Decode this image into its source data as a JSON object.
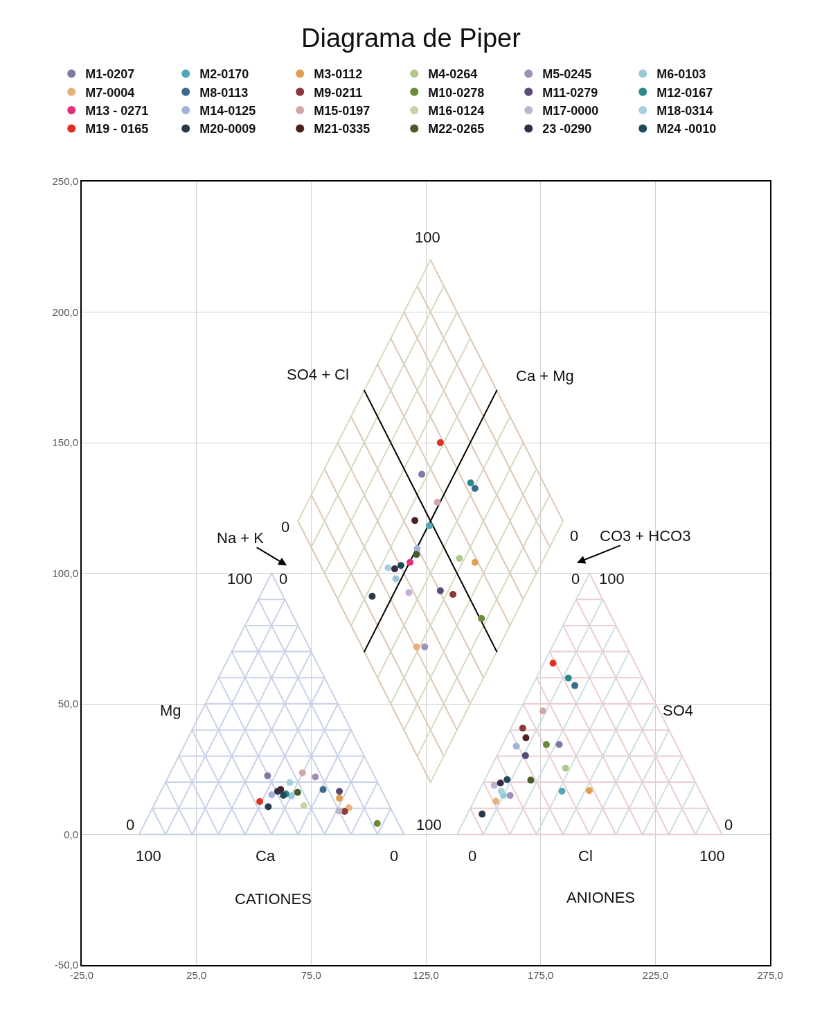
{
  "chart_data": {
    "type": "scatter",
    "title": "Diagrama de Piper",
    "legend": "top",
    "grid": true,
    "marker": "circle",
    "xlim": [
      -25,
      275
    ],
    "xticks": [
      {
        "value": -25,
        "label": "-25,0"
      },
      {
        "value": 25,
        "label": "25,0"
      },
      {
        "value": 75,
        "label": "75,0"
      },
      {
        "value": 125,
        "label": "125,0"
      },
      {
        "value": 175,
        "label": "175,0"
      },
      {
        "value": 225,
        "label": "225,0"
      },
      {
        "value": 275,
        "label": "275,0"
      }
    ],
    "ylim": [
      -50,
      250
    ],
    "yticks": [
      {
        "value": -50,
        "label": "-50,0"
      },
      {
        "value": 0,
        "label": "0,0"
      },
      {
        "value": 50,
        "label": "50,0"
      },
      {
        "value": 100,
        "label": "100,0"
      },
      {
        "value": 150,
        "label": "150,0"
      },
      {
        "value": 200,
        "label": "200,0"
      },
      {
        "value": 250,
        "label": "250,0"
      }
    ],
    "series": [
      {
        "type": "line",
        "marker": "none",
        "color": "#c9d2e6",
        "x": [
          0,
          115.47
        ],
        "values": [
          0,
          0
        ]
      },
      {
        "type": "line",
        "marker": "none",
        "color": "#c9d2e6",
        "x": [
          5.77,
          109.7
        ],
        "values": [
          10,
          10
        ]
      },
      {
        "type": "line",
        "marker": "none",
        "color": "#c9d2e6",
        "x": [
          11.55,
          103.92
        ],
        "values": [
          20,
          20
        ]
      },
      {
        "type": "line",
        "marker": "none",
        "color": "#c9d2e6",
        "x": [
          17.32,
          98.15
        ],
        "values": [
          30,
          30
        ]
      },
      {
        "type": "line",
        "marker": "none",
        "color": "#c9d2e6",
        "x": [
          23.09,
          92.38
        ],
        "values": [
          40,
          40
        ]
      },
      {
        "type": "line",
        "marker": "none",
        "color": "#c9d2e6",
        "x": [
          28.87,
          86.6
        ],
        "values": [
          50,
          50
        ]
      },
      {
        "type": "line",
        "marker": "none",
        "color": "#c9d2e6",
        "x": [
          34.64,
          80.83
        ],
        "values": [
          60,
          60
        ]
      },
      {
        "type": "line",
        "marker": "none",
        "color": "#c9d2e6",
        "x": [
          40.41,
          75.06
        ],
        "values": [
          70,
          70
        ]
      },
      {
        "type": "line",
        "marker": "none",
        "color": "#c9d2e6",
        "x": [
          46.19,
          69.28
        ],
        "values": [
          80,
          80
        ]
      },
      {
        "type": "line",
        "marker": "none",
        "color": "#c9d2e6",
        "x": [
          51.96,
          63.51
        ],
        "values": [
          90,
          90
        ]
      },
      {
        "type": "line",
        "marker": "none",
        "color": "#c9d2e6",
        "x": [
          0,
          57.74
        ],
        "values": [
          0,
          100
        ]
      },
      {
        "type": "line",
        "marker": "none",
        "color": "#c9d2e6",
        "x": [
          11.55,
          63.51
        ],
        "values": [
          0,
          90
        ]
      },
      {
        "type": "line",
        "marker": "none",
        "color": "#c9d2e6",
        "x": [
          23.09,
          69.28
        ],
        "values": [
          0,
          80
        ]
      },
      {
        "type": "line",
        "marker": "none",
        "color": "#c9d2e6",
        "x": [
          34.64,
          75.06
        ],
        "values": [
          0,
          70
        ]
      },
      {
        "type": "line",
        "marker": "none",
        "color": "#c9d2e6",
        "x": [
          46.19,
          80.83
        ],
        "values": [
          0,
          60
        ]
      },
      {
        "type": "line",
        "marker": "none",
        "color": "#c9d2e6",
        "x": [
          57.74,
          86.6
        ],
        "values": [
          0,
          50
        ]
      },
      {
        "type": "line",
        "marker": "none",
        "color": "#c9d2e6",
        "x": [
          69.28,
          92.38
        ],
        "values": [
          0,
          40
        ]
      },
      {
        "type": "line",
        "marker": "none",
        "color": "#c9d2e6",
        "x": [
          80.83,
          98.15
        ],
        "values": [
          0,
          30
        ]
      },
      {
        "type": "line",
        "marker": "none",
        "color": "#c9d2e6",
        "x": [
          92.38,
          103.92
        ],
        "values": [
          0,
          20
        ]
      },
      {
        "type": "line",
        "marker": "none",
        "color": "#c9d2e6",
        "x": [
          103.92,
          109.7
        ],
        "values": [
          0,
          10
        ]
      },
      {
        "type": "line",
        "marker": "none",
        "color": "#c9d2e6",
        "x": [
          11.55,
          5.77
        ],
        "values": [
          0,
          10
        ]
      },
      {
        "type": "line",
        "marker": "none",
        "color": "#c9d2e6",
        "x": [
          23.09,
          11.55
        ],
        "values": [
          0,
          20
        ]
      },
      {
        "type": "line",
        "marker": "none",
        "color": "#c9d2e6",
        "x": [
          34.64,
          17.32
        ],
        "values": [
          0,
          30
        ]
      },
      {
        "type": "line",
        "marker": "none",
        "color": "#c9d2e6",
        "x": [
          46.19,
          23.09
        ],
        "values": [
          0,
          40
        ]
      },
      {
        "type": "line",
        "marker": "none",
        "color": "#c9d2e6",
        "x": [
          57.74,
          28.87
        ],
        "values": [
          0,
          50
        ]
      },
      {
        "type": "line",
        "marker": "none",
        "color": "#c9d2e6",
        "x": [
          69.28,
          34.64
        ],
        "values": [
          0,
          60
        ]
      },
      {
        "type": "line",
        "marker": "none",
        "color": "#c9d2e6",
        "x": [
          80.83,
          40.41
        ],
        "values": [
          0,
          70
        ]
      },
      {
        "type": "line",
        "marker": "none",
        "color": "#c9d2e6",
        "x": [
          92.38,
          46.19
        ],
        "values": [
          0,
          80
        ]
      },
      {
        "type": "line",
        "marker": "none",
        "color": "#c9d2e6",
        "x": [
          103.92,
          51.96
        ],
        "values": [
          0,
          90
        ]
      },
      {
        "type": "line",
        "marker": "none",
        "color": "#c9d2e6",
        "x": [
          115.47,
          57.74
        ],
        "values": [
          0,
          100
        ]
      },
      {
        "type": "line",
        "marker": "none",
        "color": "#dcc6b4",
        "x": [
          127.02,
          69.28
        ],
        "values": [
          20,
          120
        ]
      },
      {
        "type": "line",
        "marker": "none",
        "color": "#dcc6b4",
        "x": [
          132.79,
          75.05
        ],
        "values": [
          30,
          130
        ]
      },
      {
        "type": "line",
        "marker": "none",
        "color": "#dcc6b4",
        "x": [
          138.57,
          80.83
        ],
        "values": [
          40,
          140
        ]
      },
      {
        "type": "line",
        "marker": "none",
        "color": "#dcc6b4",
        "x": [
          144.34,
          86.6
        ],
        "values": [
          50,
          150
        ]
      },
      {
        "type": "line",
        "marker": "none",
        "color": "#dcc6b4",
        "x": [
          150.11,
          92.37
        ],
        "values": [
          60,
          160
        ]
      },
      {
        "type": "line",
        "marker": "none",
        "color": "#dcc6b4",
        "x": [
          155.89,
          98.15
        ],
        "values": [
          70,
          170
        ]
      },
      {
        "type": "line",
        "marker": "none",
        "color": "#dcc6b4",
        "x": [
          161.66,
          103.92
        ],
        "values": [
          80,
          180
        ]
      },
      {
        "type": "line",
        "marker": "none",
        "color": "#dcc6b4",
        "x": [
          167.43,
          109.69
        ],
        "values": [
          90,
          190
        ]
      },
      {
        "type": "line",
        "marker": "none",
        "color": "#dcc6b4",
        "x": [
          173.21,
          115.47
        ],
        "values": [
          100,
          200
        ]
      },
      {
        "type": "line",
        "marker": "none",
        "color": "#dcc6b4",
        "x": [
          178.98,
          121.24
        ],
        "values": [
          110,
          210
        ]
      },
      {
        "type": "line",
        "marker": "none",
        "color": "#dcc6b4",
        "x": [
          184.75,
          127.02
        ],
        "values": [
          120,
          220
        ]
      },
      {
        "type": "line",
        "marker": "none",
        "color": "#d6dabd",
        "x": [
          127.02,
          184.75
        ],
        "values": [
          20,
          120
        ]
      },
      {
        "type": "line",
        "marker": "none",
        "color": "#d6dabd",
        "x": [
          121.25,
          178.98
        ],
        "values": [
          30,
          130
        ]
      },
      {
        "type": "line",
        "marker": "none",
        "color": "#d6dabd",
        "x": [
          115.47,
          173.2
        ],
        "values": [
          40,
          140
        ]
      },
      {
        "type": "line",
        "marker": "none",
        "color": "#d6dabd",
        "x": [
          109.7,
          167.43
        ],
        "values": [
          50,
          150
        ]
      },
      {
        "type": "line",
        "marker": "none",
        "color": "#d6dabd",
        "x": [
          103.93,
          161.66
        ],
        "values": [
          60,
          160
        ]
      },
      {
        "type": "line",
        "marker": "none",
        "color": "#d6dabd",
        "x": [
          98.15,
          155.88
        ],
        "values": [
          70,
          170
        ]
      },
      {
        "type": "line",
        "marker": "none",
        "color": "#d6dabd",
        "x": [
          92.38,
          150.11
        ],
        "values": [
          80,
          180
        ]
      },
      {
        "type": "line",
        "marker": "none",
        "color": "#d6dabd",
        "x": [
          86.61,
          144.34
        ],
        "values": [
          90,
          190
        ]
      },
      {
        "type": "line",
        "marker": "none",
        "color": "#d6dabd",
        "x": [
          80.83,
          138.56
        ],
        "values": [
          100,
          200
        ]
      },
      {
        "type": "line",
        "marker": "none",
        "color": "#d6dabd",
        "x": [
          75.06,
          132.79
        ],
        "values": [
          110,
          210
        ]
      },
      {
        "type": "line",
        "marker": "none",
        "color": "#d6dabd",
        "x": [
          69.28,
          127.02
        ],
        "values": [
          120,
          220
        ]
      },
      {
        "type": "line",
        "marker": "none",
        "color": "#ecccd0",
        "x": [
          138.56,
          254.03
        ],
        "values": [
          0,
          0
        ]
      },
      {
        "type": "line",
        "marker": "none",
        "color": "#ecccd0",
        "x": [
          144.33,
          248.26
        ],
        "values": [
          10,
          10
        ]
      },
      {
        "type": "line",
        "marker": "none",
        "color": "#ecccd0",
        "x": [
          150.11,
          242.48
        ],
        "values": [
          20,
          20
        ]
      },
      {
        "type": "line",
        "marker": "none",
        "color": "#ecccd0",
        "x": [
          155.88,
          236.71
        ],
        "values": [
          30,
          30
        ]
      },
      {
        "type": "line",
        "marker": "none",
        "color": "#ecccd0",
        "x": [
          161.65,
          230.94
        ],
        "values": [
          40,
          40
        ]
      },
      {
        "type": "line",
        "marker": "none",
        "color": "#ecccd0",
        "x": [
          167.43,
          225.16
        ],
        "values": [
          50,
          50
        ]
      },
      {
        "type": "line",
        "marker": "none",
        "color": "#ecccd0",
        "x": [
          173.2,
          219.39
        ],
        "values": [
          60,
          60
        ]
      },
      {
        "type": "line",
        "marker": "none",
        "color": "#ecccd0",
        "x": [
          178.97,
          213.62
        ],
        "values": [
          70,
          70
        ]
      },
      {
        "type": "line",
        "marker": "none",
        "color": "#ecccd0",
        "x": [
          184.75,
          207.84
        ],
        "values": [
          80,
          80
        ]
      },
      {
        "type": "line",
        "marker": "none",
        "color": "#ecccd0",
        "x": [
          190.52,
          202.07
        ],
        "values": [
          90,
          90
        ]
      },
      {
        "type": "line",
        "marker": "none",
        "color": "#ecccd0",
        "x": [
          150.11,
          144.33
        ],
        "values": [
          0,
          10
        ]
      },
      {
        "type": "line",
        "marker": "none",
        "color": "#ecccd0",
        "x": [
          161.65,
          150.11
        ],
        "values": [
          0,
          20
        ]
      },
      {
        "type": "line",
        "marker": "none",
        "color": "#ecccd0",
        "x": [
          173.2,
          155.88
        ],
        "values": [
          0,
          30
        ]
      },
      {
        "type": "line",
        "marker": "none",
        "color": "#ecccd0",
        "x": [
          184.75,
          161.65
        ],
        "values": [
          0,
          40
        ]
      },
      {
        "type": "line",
        "marker": "none",
        "color": "#ecccd0",
        "x": [
          196.3,
          167.43
        ],
        "values": [
          0,
          50
        ]
      },
      {
        "type": "line",
        "marker": "none",
        "color": "#ecccd0",
        "x": [
          207.84,
          173.2
        ],
        "values": [
          0,
          60
        ]
      },
      {
        "type": "line",
        "marker": "none",
        "color": "#ecccd0",
        "x": [
          219.39,
          178.97
        ],
        "values": [
          0,
          70
        ]
      },
      {
        "type": "line",
        "marker": "none",
        "color": "#ecccd0",
        "x": [
          230.94,
          184.75
        ],
        "values": [
          0,
          80
        ]
      },
      {
        "type": "line",
        "marker": "none",
        "color": "#ecccd0",
        "x": [
          242.48,
          190.52
        ],
        "values": [
          0,
          90
        ]
      },
      {
        "type": "line",
        "marker": "none",
        "color": "#ecccd0",
        "x": [
          254.03,
          196.3
        ],
        "values": [
          0,
          100
        ]
      },
      {
        "type": "line",
        "marker": "none",
        "color": "#cddde6",
        "x": [
          138.56,
          196.3
        ],
        "values": [
          0,
          100
        ]
      },
      {
        "type": "line",
        "marker": "none",
        "color": "#cddde6",
        "x": [
          150.11,
          202.07
        ],
        "values": [
          0,
          90
        ]
      },
      {
        "type": "line",
        "marker": "none",
        "color": "#cddde6",
        "x": [
          161.65,
          207.84
        ],
        "values": [
          0,
          80
        ]
      },
      {
        "type": "line",
        "marker": "none",
        "color": "#cddde6",
        "x": [
          173.2,
          213.62
        ],
        "values": [
          0,
          70
        ]
      },
      {
        "type": "line",
        "marker": "none",
        "color": "#cddde6",
        "x": [
          184.75,
          219.39
        ],
        "values": [
          0,
          60
        ]
      },
      {
        "type": "line",
        "marker": "none",
        "color": "#cddde6",
        "x": [
          196.3,
          225.16
        ],
        "values": [
          0,
          50
        ]
      },
      {
        "type": "line",
        "marker": "none",
        "color": "#cddde6",
        "x": [
          207.84,
          230.94
        ],
        "values": [
          0,
          40
        ]
      },
      {
        "type": "line",
        "marker": "none",
        "color": "#cddde6",
        "x": [
          219.39,
          236.71
        ],
        "values": [
          0,
          30
        ]
      },
      {
        "type": "line",
        "marker": "none",
        "color": "#cddde6",
        "x": [
          230.94,
          242.48
        ],
        "values": [
          0,
          20
        ]
      },
      {
        "type": "line",
        "marker": "none",
        "color": "#cddde6",
        "x": [
          242.48,
          248.26
        ],
        "values": [
          0,
          10
        ]
      },
      {
        "type": "line",
        "marker": "none",
        "color": "#000000",
        "x": [
          98.15,
          155.89
        ],
        "values": [
          170,
          70
        ]
      },
      {
        "type": "line",
        "marker": "none",
        "color": "#000000",
        "x": [
          155.89,
          98.15
        ],
        "values": [
          170,
          70
        ]
      },
      {
        "name": "M1-0207",
        "color": "#7e7aa6",
        "x": [
          56.0,
          123.2,
          183.1
        ],
        "values": [
          22.5,
          137.9,
          34.4
        ]
      },
      {
        "name": "M2-0170",
        "color": "#4fa8b8",
        "x": [
          126.5,
          184.3
        ],
        "values": [
          118.2,
          16.6
        ]
      },
      {
        "name": "M3-0112",
        "color": "#e0a050",
        "x": [
          87.3,
          146.4,
          196.2
        ],
        "values": [
          13.9,
          104.2,
          16.8
        ]
      },
      {
        "name": "M4-0264",
        "color": "#b0c88a",
        "x": [
          139.6,
          185.9
        ],
        "values": [
          105.7,
          25.4
        ]
      },
      {
        "name": "M5-0245",
        "color": "#a090b8",
        "x": [
          76.8,
          124.5,
          161.7
        ],
        "values": [
          22.0,
          71.8,
          14.9
        ]
      },
      {
        "name": "M6-0103",
        "color": "#98c8d8",
        "x": [
          66.4,
          111.9,
          158.8
        ],
        "values": [
          14.8,
          97.9,
          15.0
        ]
      },
      {
        "name": "M7-0004",
        "color": "#e8b07a",
        "x": [
          91.4,
          121.0,
          155.5
        ],
        "values": [
          10.2,
          71.8,
          12.7
        ]
      },
      {
        "name": "M8-0113",
        "color": "#3a6a8e",
        "x": [
          80.2,
          146.4,
          189.9
        ],
        "values": [
          17.2,
          132.5,
          57.0
        ]
      },
      {
        "name": "M9-0211",
        "color": "#8a3a3a",
        "x": [
          89.6,
          136.8,
          167.2
        ],
        "values": [
          8.8,
          91.9,
          40.7
        ]
      },
      {
        "name": "M10-0278",
        "color": "#6a8a3a",
        "x": [
          103.8,
          149.2,
          177.5
        ],
        "values": [
          4.2,
          82.7,
          34.4
        ]
      },
      {
        "name": "M11-0279",
        "color": "#5a4a7a",
        "x": [
          87.3,
          131.3,
          168.4
        ],
        "values": [
          16.5,
          93.3,
          30.2
        ]
      },
      {
        "name": "M12-0167",
        "color": "#2a8a8a",
        "x": [
          64.0,
          144.5,
          187.1
        ],
        "values": [
          15.5,
          134.6,
          59.9
        ]
      },
      {
        "name": "M13 - 0271",
        "color": "#e0307a",
        "x": [
          118.1
        ],
        "values": [
          104.2
        ]
      },
      {
        "name": "M14-0125",
        "color": "#a0b4d8",
        "x": [
          57.8,
          121.2,
          164.4
        ],
        "values": [
          15.2,
          109.4,
          33.8
        ]
      },
      {
        "name": "M15-0197",
        "color": "#d0a8a8",
        "x": [
          71.2,
          130.0,
          176.0
        ],
        "values": [
          23.6,
          127.2,
          47.3
        ]
      },
      {
        "name": "M16-0124",
        "color": "#c8d4a8",
        "x": [
          71.8
        ],
        "values": [
          11.0
        ]
      },
      {
        "name": "M17-0000",
        "color": "#c0b4cc",
        "x": [
          87.1,
          117.6,
          154.8
        ],
        "values": [
          9.0,
          92.6,
          18.8
        ]
      },
      {
        "name": "M18-0314",
        "color": "#a8d0dc",
        "x": [
          65.7,
          108.5,
          157.8
        ],
        "values": [
          19.9,
          102.1,
          16.6
        ]
      },
      {
        "name": "M19 - 0165",
        "color": "#e03020",
        "x": [
          52.6,
          131.3,
          180.4
        ],
        "values": [
          12.6,
          150.0,
          65.6
        ]
      },
      {
        "name": "M20-0009",
        "color": "#2a3a4a",
        "x": [
          56.3,
          101.6,
          149.5
        ],
        "values": [
          10.6,
          91.2,
          7.8
        ]
      },
      {
        "name": "M21-0335",
        "color": "#4a2020",
        "x": [
          61.7,
          120.2,
          168.6
        ],
        "values": [
          17.2,
          120.2,
          37.0
        ]
      },
      {
        "name": "M22-0265",
        "color": "#4a5a2a",
        "x": [
          69.1,
          120.9,
          170.7
        ],
        "values": [
          16.1,
          107.2,
          20.8
        ]
      },
      {
        "name": "23 -0290",
        "color": "#3a2a4a",
        "x": [
          60.4,
          111.4,
          157.5
        ],
        "values": [
          16.5,
          101.7,
          19.7
        ]
      },
      {
        "name": "M24 -0010",
        "color": "#1e4a5a",
        "x": [
          62.9,
          114.1,
          160.4
        ],
        "values": [
          15.0,
          103.0,
          21.0
        ]
      }
    ],
    "annotations": [
      "Na + K",
      "CO3 + HCO3",
      "0",
      "100",
      "0",
      "Mg",
      "0",
      "100",
      "Ca",
      "0",
      "CATIONES",
      "100",
      "100",
      "SO4 + Cl",
      "Ca + Mg",
      "0",
      "0",
      "100",
      "SO4",
      "0",
      "0",
      "Cl",
      "100",
      "ANIONES"
    ]
  }
}
